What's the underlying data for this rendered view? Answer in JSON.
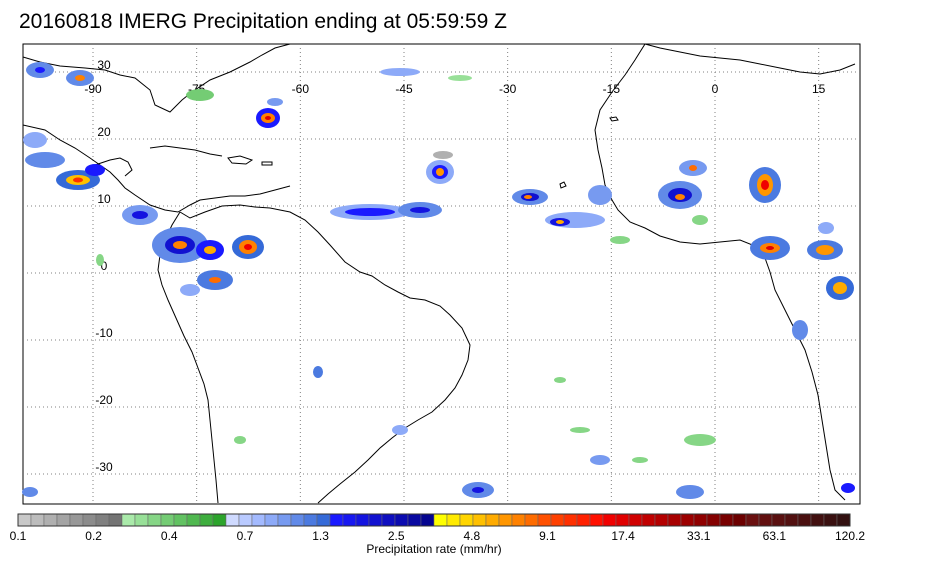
{
  "title": "20160818 IMERG Precipitation ending at 05:59:59 Z",
  "map": {
    "lon_labels": [
      "-90",
      "-75",
      "-60",
      "-45",
      "-30",
      "-15",
      "0",
      "15"
    ],
    "lat_labels": [
      "30",
      "20",
      "10",
      "0",
      "-10",
      "-20",
      "-30"
    ],
    "grid_style": "dotted"
  },
  "colorbar": {
    "title": "Precipitation rate (mm/hr)",
    "tick_labels": [
      "0.1",
      "0.2",
      "0.4",
      "0.7",
      "1.3",
      "2.5",
      "4.8",
      "9.1",
      "17.4",
      "33.1",
      "63.1",
      "120.2"
    ],
    "colors": [
      "#c8c8c8",
      "#bcbcbc",
      "#b0b0b0",
      "#a4a4a4",
      "#989898",
      "#8c8c8c",
      "#808080",
      "#747474",
      "#aaeaaa",
      "#98e098",
      "#86d686",
      "#74cc74",
      "#62c262",
      "#50b850",
      "#3eae3e",
      "#2ca42c",
      "#cfdaff",
      "#b9caff",
      "#a3baff",
      "#8daaf8",
      "#779af0",
      "#618ae8",
      "#4b7ae0",
      "#356ad8",
      "#1a1aff",
      "#1717f0",
      "#1414e0",
      "#1111d0",
      "#0e0ec0",
      "#0b0bb0",
      "#0808a0",
      "#050590",
      "#ffff00",
      "#ffea00",
      "#ffd500",
      "#ffc000",
      "#ffab00",
      "#ff9600",
      "#ff8100",
      "#ff6c00",
      "#ff5000",
      "#ff4000",
      "#ff3000",
      "#ff2000",
      "#ff1000",
      "#f00000",
      "#e00000",
      "#d00000",
      "#c00000",
      "#b40000",
      "#a80000",
      "#9c0000",
      "#900000",
      "#840000",
      "#780000",
      "#6c0000",
      "#6a1010",
      "#621010",
      "#5a1010",
      "#521010",
      "#4a1010",
      "#421010",
      "#3a1010",
      "#321010"
    ]
  }
}
